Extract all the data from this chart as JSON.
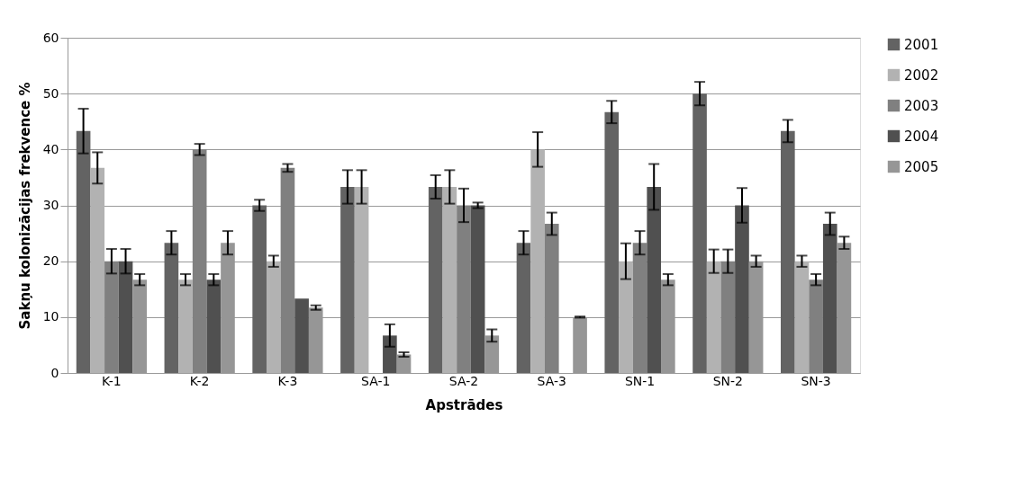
{
  "chart_data": {
    "type": "bar",
    "xlabel": "Apstrādes",
    "ylabel": "Sakņu kolonizācijas frekvence %",
    "categories": [
      "K-1",
      "K-2",
      "K-3",
      "SA-1",
      "SA-2",
      "SA-3",
      "SN-1",
      "SN-2",
      "SN-3"
    ],
    "series": [
      {
        "name": "2001",
        "color": "#636363",
        "values": [
          43.3,
          23.3,
          30,
          33.3,
          33.3,
          23.3,
          46.7,
          50,
          43.3
        ],
        "errors": [
          4,
          2.1,
          1,
          3,
          2.1,
          2.1,
          2,
          2.1,
          2
        ]
      },
      {
        "name": "2002",
        "color": "#b2b2b2",
        "values": [
          36.7,
          16.7,
          20,
          33.3,
          33.3,
          40,
          20,
          20,
          20
        ],
        "errors": [
          2.8,
          1,
          1,
          3,
          3,
          3.1,
          3.2,
          2.1,
          1
        ]
      },
      {
        "name": "2003",
        "color": "#808080",
        "values": [
          20,
          40,
          36.7,
          null,
          30,
          26.7,
          23.3,
          20,
          16.7
        ],
        "errors": [
          2.2,
          1,
          0.7,
          null,
          3,
          2,
          2.1,
          2.1,
          1
        ]
      },
      {
        "name": "2004",
        "color": "#505050",
        "values": [
          20,
          16.7,
          13.3,
          6.7,
          30,
          null,
          33.3,
          30,
          26.7
        ],
        "errors": [
          2.2,
          1,
          null,
          2,
          0.5,
          null,
          4.1,
          3.1,
          2
        ]
      },
      {
        "name": "2005",
        "color": "#969696",
        "values": [
          16.7,
          23.3,
          11.7,
          3.3,
          6.7,
          10,
          16.7,
          20,
          23.3
        ],
        "errors": [
          1,
          2.1,
          0.4,
          0.4,
          1.1,
          0.1,
          1,
          1,
          1.1
        ]
      }
    ],
    "ylim": [
      0,
      60
    ],
    "yticks": [
      0,
      10,
      20,
      30,
      40,
      50,
      60
    ],
    "grid": "y",
    "legend": "right"
  }
}
